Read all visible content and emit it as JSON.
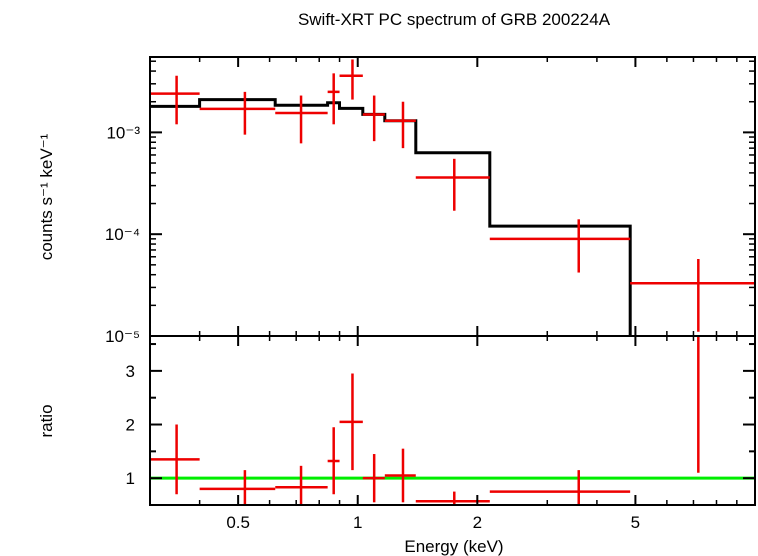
{
  "chart_data": [
    {
      "type": "step-errorbar",
      "panel": "spectrum",
      "title": "Swift-XRT PC spectrum of GRB 200224A",
      "xlabel": "Energy (keV)",
      "ylabel": "counts s⁻¹ keV⁻¹",
      "xscale": "log",
      "yscale": "log",
      "xlim": [
        0.3,
        10
      ],
      "ylim": [
        1e-05,
        0.0055
      ],
      "ytick_labels": [
        "10⁻³",
        "10⁻⁴",
        "10⁻⁵"
      ],
      "ytick_values": [
        0.001,
        0.0001,
        1e-05
      ],
      "model": {
        "name": "model",
        "color": "#000000",
        "bin_edges": [
          0.3,
          0.4,
          0.62,
          0.84,
          0.9,
          1.03,
          1.17,
          1.4,
          2.15,
          4.85,
          10
        ],
        "values": [
          0.0018,
          0.0021,
          0.00185,
          0.00195,
          0.00172,
          0.0015,
          0.0013,
          0.00063,
          0.00012,
          8.8e-06
        ]
      },
      "data": {
        "name": "data",
        "color": "#ee0000",
        "points": [
          {
            "x": 0.35,
            "xlo": 0.3,
            "xhi": 0.4,
            "y": 0.0024,
            "ylo": 0.0012,
            "yhi": 0.0036
          },
          {
            "x": 0.52,
            "xlo": 0.4,
            "xhi": 0.62,
            "y": 0.0017,
            "ylo": 0.00095,
            "yhi": 0.0025
          },
          {
            "x": 0.72,
            "xlo": 0.62,
            "xhi": 0.84,
            "y": 0.00155,
            "ylo": 0.00078,
            "yhi": 0.0023
          },
          {
            "x": 0.87,
            "xlo": 0.84,
            "xhi": 0.9,
            "y": 0.0025,
            "ylo": 0.0012,
            "yhi": 0.0038
          },
          {
            "x": 0.97,
            "xlo": 0.9,
            "xhi": 1.03,
            "y": 0.0036,
            "ylo": 0.0021,
            "yhi": 0.0052
          },
          {
            "x": 1.1,
            "xlo": 1.03,
            "xhi": 1.17,
            "y": 0.0015,
            "ylo": 0.00082,
            "yhi": 0.0023
          },
          {
            "x": 1.3,
            "xlo": 1.17,
            "xhi": 1.4,
            "y": 0.0013,
            "ylo": 0.0007,
            "yhi": 0.002
          },
          {
            "x": 1.75,
            "xlo": 1.4,
            "xhi": 2.15,
            "y": 0.00036,
            "ylo": 0.00017,
            "yhi": 0.00055
          },
          {
            "x": 3.6,
            "xlo": 2.15,
            "xhi": 4.85,
            "y": 9e-05,
            "ylo": 4.2e-05,
            "yhi": 0.00014
          },
          {
            "x": 7.2,
            "xlo": 4.85,
            "xhi": 10,
            "y": 3.3e-05,
            "ylo": 1.1e-05,
            "yhi": 5.7e-05
          }
        ]
      }
    },
    {
      "type": "errorbar",
      "panel": "ratio",
      "xlabel": "Energy (keV)",
      "ylabel": "ratio",
      "xscale": "log",
      "yscale": "linear",
      "xlim": [
        0.3,
        10
      ],
      "ylim": [
        0.5,
        3.65
      ],
      "ytick_labels": [
        "1",
        "2",
        "3"
      ],
      "ytick_values": [
        1,
        2,
        3
      ],
      "xtick_labels": [
        "0.5",
        "1",
        "2",
        "5"
      ],
      "xtick_values": [
        0.5,
        1,
        2,
        5
      ],
      "reference_line": {
        "y": 1,
        "color": "#00ee00"
      },
      "data": {
        "name": "ratio",
        "color": "#ee0000",
        "points": [
          {
            "x": 0.35,
            "xlo": 0.3,
            "xhi": 0.4,
            "y": 1.35,
            "ylo": 0.7,
            "yhi": 2.0
          },
          {
            "x": 0.52,
            "xlo": 0.4,
            "xhi": 0.62,
            "y": 0.8,
            "ylo": 0.45,
            "yhi": 1.15
          },
          {
            "x": 0.72,
            "xlo": 0.62,
            "xhi": 0.84,
            "y": 0.83,
            "ylo": 0.43,
            "yhi": 1.23
          },
          {
            "x": 0.87,
            "xlo": 0.84,
            "xhi": 0.9,
            "y": 1.32,
            "ylo": 0.7,
            "yhi": 1.95
          },
          {
            "x": 0.97,
            "xlo": 0.9,
            "xhi": 1.03,
            "y": 2.05,
            "ylo": 1.15,
            "yhi": 2.95
          },
          {
            "x": 1.1,
            "xlo": 1.03,
            "xhi": 1.17,
            "y": 1.0,
            "ylo": 0.55,
            "yhi": 1.45
          },
          {
            "x": 1.3,
            "xlo": 1.17,
            "xhi": 1.4,
            "y": 1.05,
            "ylo": 0.55,
            "yhi": 1.55
          },
          {
            "x": 1.75,
            "xlo": 1.4,
            "xhi": 2.15,
            "y": 0.57,
            "ylo": 0.4,
            "yhi": 0.75
          },
          {
            "x": 3.6,
            "xlo": 2.15,
            "xhi": 4.85,
            "y": 0.75,
            "ylo": 0.4,
            "yhi": 1.15
          },
          {
            "x": 7.2,
            "xlo": 4.85,
            "xhi": 10,
            "y": 3.75,
            "ylo": 1.1,
            "yhi": 3.75
          }
        ]
      }
    }
  ]
}
